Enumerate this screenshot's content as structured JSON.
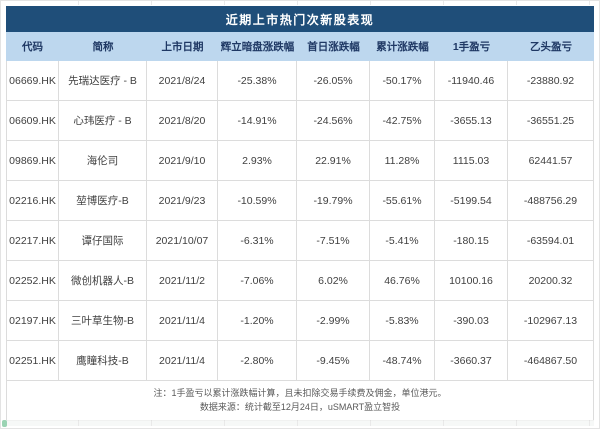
{
  "chart_data": {
    "type": "table",
    "title": "近期上市热门次新股表现",
    "columns": [
      "代码",
      "简称",
      "上市日期",
      "辉立暗盘涨跌幅",
      "首日涨跌幅",
      "累计涨跌幅",
      "1手盈亏",
      "乙头盈亏"
    ],
    "rows": [
      [
        "06669.HK",
        "先瑞达医疗 - B",
        "2021/8/24",
        "-25.38%",
        "-26.05%",
        "-50.17%",
        "-11940.46",
        "-23880.92"
      ],
      [
        "06609.HK",
        "心玮医疗 - B",
        "2021/8/20",
        "-14.91%",
        "-24.56%",
        "-42.75%",
        "-3655.13",
        "-36551.25"
      ],
      [
        "09869.HK",
        "海伦司",
        "2021/9/10",
        "2.93%",
        "22.91%",
        "11.28%",
        "1115.03",
        "62441.57"
      ],
      [
        "02216.HK",
        "堃博医疗-B",
        "2021/9/23",
        "-10.59%",
        "-19.79%",
        "-55.61%",
        "-5199.54",
        "-488756.29"
      ],
      [
        "02217.HK",
        "谭仔国际",
        "2021/10/07",
        "-6.31%",
        "-7.51%",
        "-5.41%",
        "-180.15",
        "-63594.01"
      ],
      [
        "02252.HK",
        "微创机器人-B",
        "2021/11/2",
        "-7.06%",
        "6.02%",
        "46.76%",
        "10100.16",
        "20200.32"
      ],
      [
        "02197.HK",
        "三叶草生物-B",
        "2021/11/4",
        "-1.20%",
        "-2.99%",
        "-5.83%",
        "-390.03",
        "-102967.13"
      ],
      [
        "02251.HK",
        "鹰瞳科技-B",
        "2021/11/4",
        "-2.80%",
        "-9.45%",
        "-48.74%",
        "-3660.37",
        "-464867.50"
      ]
    ]
  },
  "notes": {
    "line1": "注：1手盈亏以累计涨跌幅计算，且未扣除交易手续费及佣金，单位港元。",
    "line2": "数据来源：统计截至12月24日，uSMART盈立智投"
  },
  "colors": {
    "title_bar": "#1f4e79",
    "title_text": "#ffffff",
    "header_bg": "#bdd7ee",
    "header_text": "#1f3864",
    "grid_line": "#dcdcdc",
    "cell_text": "#404040",
    "note_text": "#595959"
  }
}
